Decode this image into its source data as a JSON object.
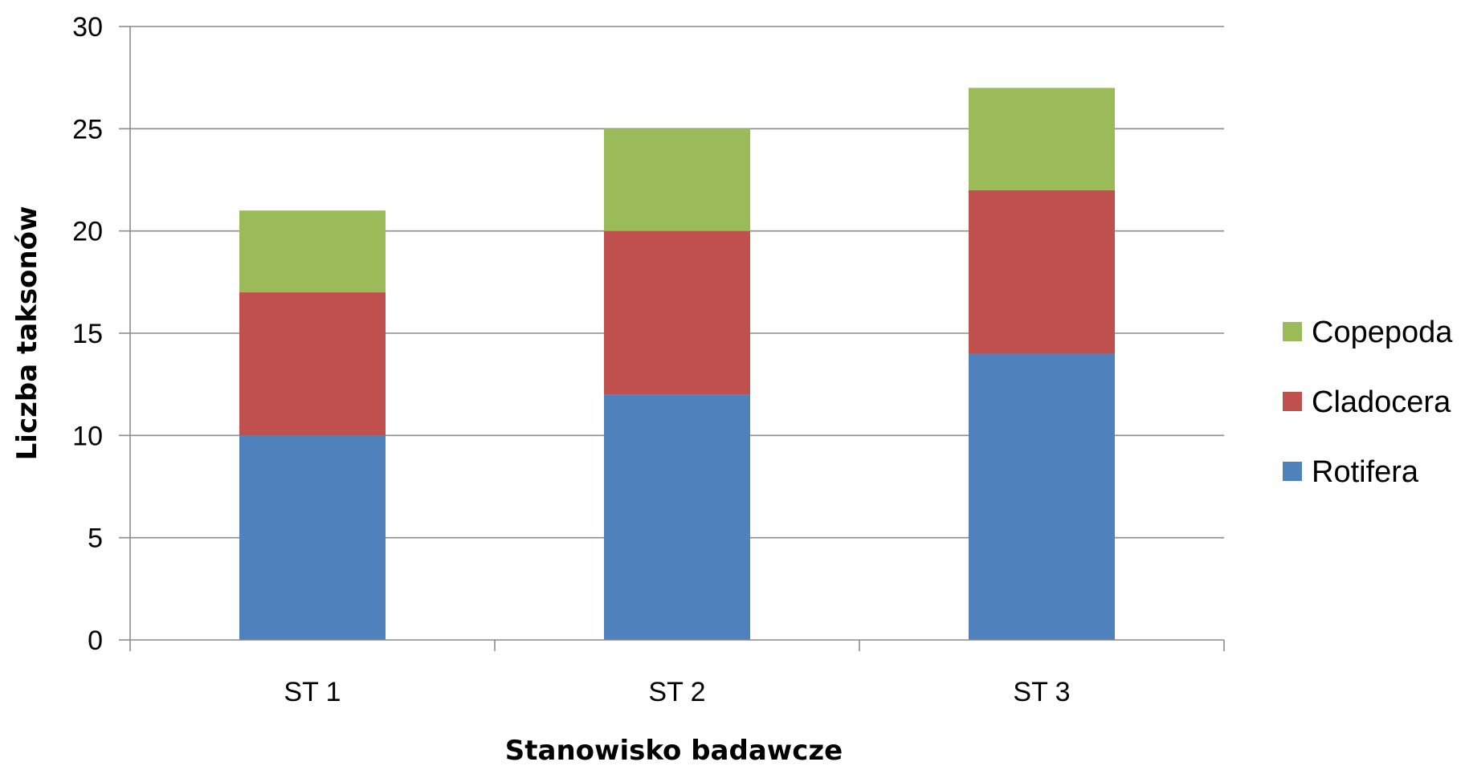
{
  "chart_data": {
    "type": "bar",
    "stacked": true,
    "categories": [
      "ST 1",
      "ST 2",
      "ST 3"
    ],
    "series": [
      {
        "name": "Rotifera",
        "values": [
          10,
          12,
          14
        ],
        "color": "#4f81bd"
      },
      {
        "name": "Cladocera",
        "values": [
          7,
          8,
          8
        ],
        "color": "#c0504d"
      },
      {
        "name": "Copepoda",
        "values": [
          4,
          5,
          5
        ],
        "color": "#9bbb59"
      }
    ],
    "title": "",
    "xlabel": "Stanowisko badawcze",
    "ylabel": "Liczba taksonów",
    "ylim": [
      0,
      30
    ],
    "yticks": [
      0,
      5,
      10,
      15,
      20,
      25,
      30
    ],
    "grid": true,
    "legend": {
      "placement": "right",
      "order": [
        "Copepoda",
        "Cladocera",
        "Rotifera"
      ]
    }
  }
}
